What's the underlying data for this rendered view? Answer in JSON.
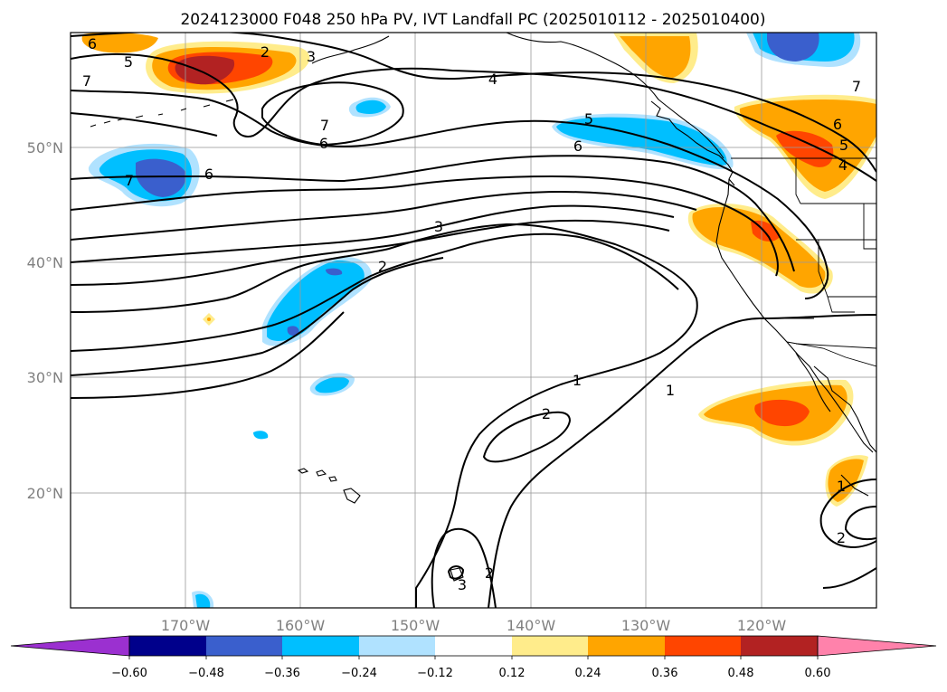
{
  "title": "2024123000 F048 250 hPa PV, IVT Landfall PC (2025010112 - 2025010400)",
  "lon_labels": [
    "170°W",
    "160°W",
    "150°W",
    "140°W",
    "130°W",
    "120°W"
  ],
  "lat_labels": [
    "50°N",
    "40°N",
    "30°N",
    "20°N"
  ],
  "colorbar": {
    "tick_labels": [
      "−0.60",
      "−0.48",
      "−0.36",
      "−0.24",
      "−0.12",
      "0.12",
      "0.24",
      "0.36",
      "0.48",
      "0.60"
    ],
    "colors": [
      "#9b30d0",
      "#00008b",
      "#3a5fcd",
      "#00bfff",
      "#b0e2ff",
      "#ffffff",
      "#ffec8b",
      "#ffa500",
      "#ff4500",
      "#b22222",
      "#ff82ab"
    ]
  },
  "contour_labels": [
    "6",
    "5",
    "7",
    "2",
    "3",
    "4",
    "7",
    "6",
    "5",
    "6",
    "7",
    "6",
    "7",
    "6",
    "5",
    "4",
    "3",
    "2",
    "1",
    "1",
    "2",
    "2",
    "3",
    "1",
    "2"
  ],
  "map": {
    "projection": "PlateCarree",
    "lon_range": [
      "180°W",
      "110°W"
    ],
    "lat_range": [
      "10°N",
      "60°N"
    ]
  }
}
